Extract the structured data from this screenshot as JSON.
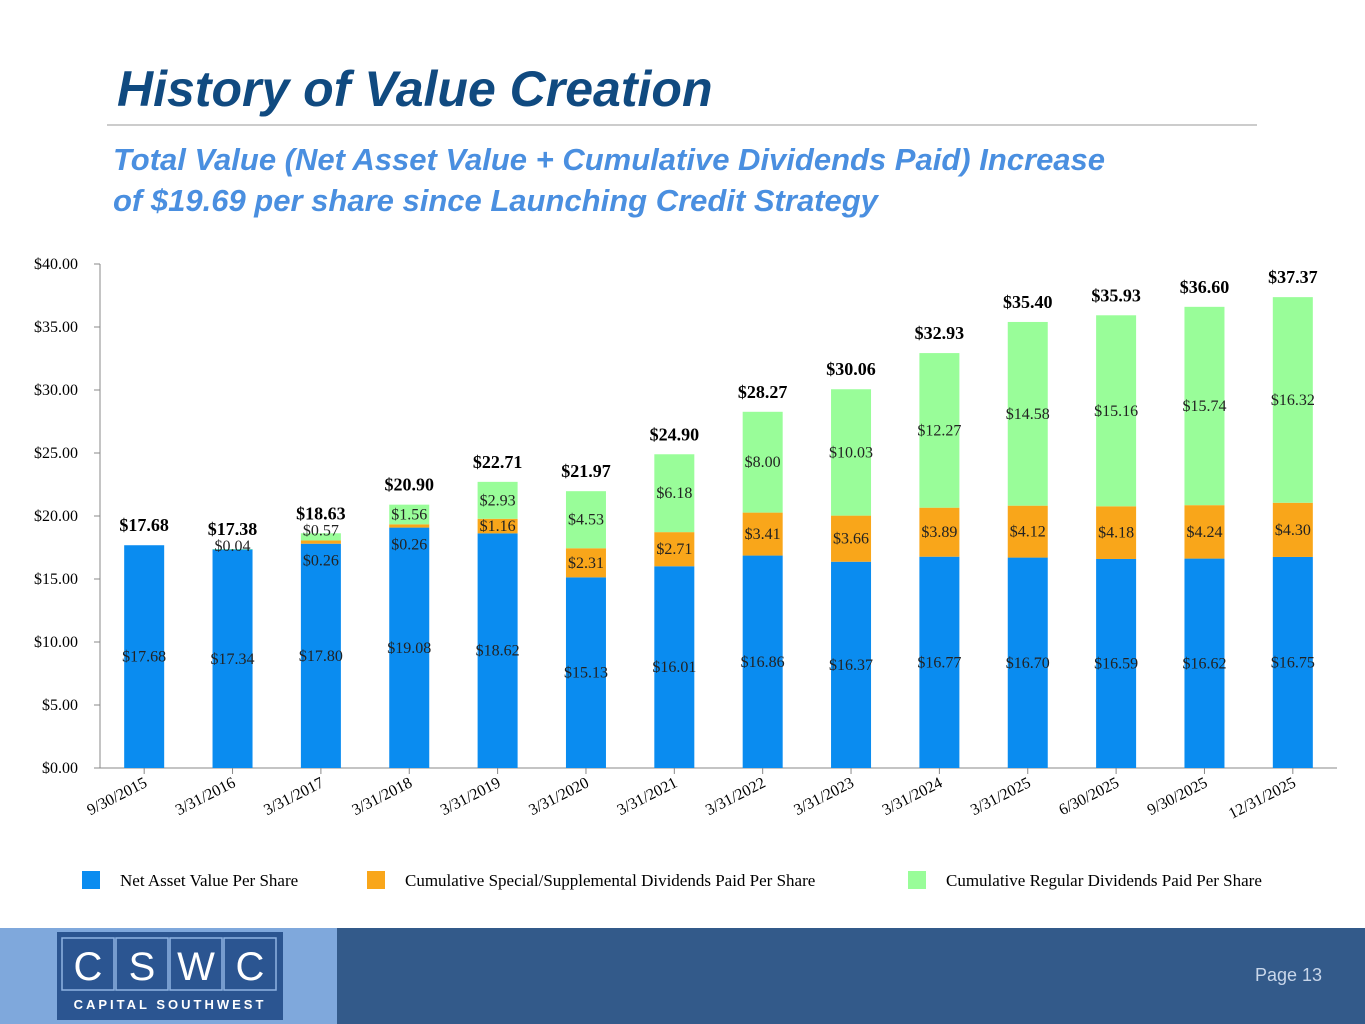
{
  "chart_data": {
    "type": "stacked-bar",
    "title": "History of Value Creation",
    "subtitle": [
      "Total Value (Net Asset Value + Cumulative Dividends Paid) Increase",
      "of $19.69 per share since Launching Credit Strategy"
    ],
    "categories": [
      "9/30/2015",
      "3/31/2016",
      "3/31/2017",
      "3/31/2018",
      "3/31/2019",
      "3/31/2020",
      "3/31/2021",
      "3/31/2022",
      "3/31/2023",
      "3/31/2024",
      "3/31/2025",
      "6/30/2025",
      "9/30/2025",
      "12/31/2025"
    ],
    "series": [
      {
        "name": "Net Asset Value Per Share",
        "color": "#0a8cf0",
        "values": [
          17.68,
          17.34,
          17.8,
          19.08,
          18.62,
          15.13,
          16.01,
          16.86,
          16.37,
          16.77,
          16.7,
          16.59,
          16.62,
          16.75
        ],
        "value_labels": [
          "$17.68",
          "$17.34",
          "$17.80",
          "$19.08",
          "$18.62",
          "$15.13",
          "$16.01",
          "$16.86",
          "$16.37",
          "$16.77",
          "$16.70",
          "$16.59",
          "$16.62",
          "$16.75"
        ]
      },
      {
        "name": "Cumulative Special/Supplemental Dividends Paid Per Share",
        "color": "#f9a61a",
        "values": [
          null,
          null,
          0.26,
          0.26,
          1.16,
          2.31,
          2.71,
          3.41,
          3.66,
          3.89,
          4.12,
          4.18,
          4.24,
          4.3
        ],
        "value_labels": [
          null,
          null,
          "$0.26",
          "$0.26",
          "$1.16",
          "$2.31",
          "$2.71",
          "$3.41",
          "$3.66",
          "$3.89",
          "$4.12",
          "$4.18",
          "$4.24",
          "$4.30"
        ]
      },
      {
        "name": "Cumulative Regular Dividends Paid Per Share",
        "color": "#99fd99",
        "values": [
          null,
          0.04,
          0.57,
          1.56,
          2.93,
          4.53,
          6.18,
          8.0,
          10.03,
          12.27,
          14.58,
          15.16,
          15.74,
          16.32
        ],
        "value_labels": [
          null,
          "$0.04",
          "$0.57",
          "$1.56",
          "$2.93",
          "$4.53",
          "$6.18",
          "$8.00",
          "$10.03",
          "$12.27",
          "$14.58",
          "$15.16",
          "$15.74",
          "$16.32"
        ]
      }
    ],
    "totals": {
      "values": [
        17.68,
        17.38,
        18.63,
        20.9,
        22.71,
        21.97,
        24.9,
        28.27,
        30.06,
        32.93,
        35.4,
        35.93,
        36.6,
        37.37
      ],
      "value_labels": [
        "$17.68",
        "$17.38",
        "$18.63",
        "$20.90",
        "$22.71",
        "$21.97",
        "$24.90",
        "$28.27",
        "$30.06",
        "$32.93",
        "$35.40",
        "$35.93",
        "$36.60",
        "$37.37"
      ]
    },
    "ylim": [
      0,
      40
    ],
    "yticks": [
      {
        "value": 0,
        "label": "$0.00"
      },
      {
        "value": 5,
        "label": "$5.00"
      },
      {
        "value": 10,
        "label": "$10.00"
      },
      {
        "value": 15,
        "label": "$15.00"
      },
      {
        "value": 20,
        "label": "$20.00"
      },
      {
        "value": 25,
        "label": "$25.00"
      },
      {
        "value": 30,
        "label": "$30.00"
      },
      {
        "value": 35,
        "label": "$35.00"
      },
      {
        "value": 40,
        "label": "$40.00"
      }
    ],
    "legend": "bottom"
  },
  "logo": {
    "letters": [
      "C",
      "S",
      "W",
      "C"
    ],
    "name": "CAPITAL SOUTHWEST"
  },
  "footer": {
    "page": "Page 13"
  }
}
